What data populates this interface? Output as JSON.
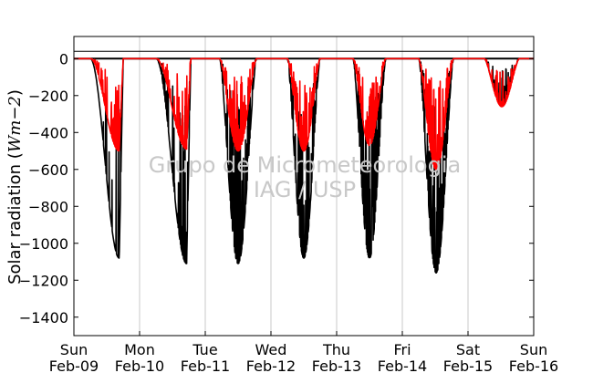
{
  "chart_data": {
    "type": "line",
    "ylabel": "Solar radiation ($Wm-2$)",
    "ylabel_text": "Solar radiation (",
    "ylabel_math": "Wm−2",
    "ylabel_close": ")",
    "ylim": [
      -1500,
      120
    ],
    "yticks": [
      0,
      -200,
      -400,
      -600,
      -800,
      -1000,
      -1200,
      -1400
    ],
    "ytick_labels": [
      "0",
      "−200",
      "−400",
      "−600",
      "−800",
      "−1000",
      "−1200",
      "−1400"
    ],
    "xlim": [
      0,
      7
    ],
    "xticks": [
      {
        "day": "Sun",
        "date": "Feb-09"
      },
      {
        "day": "Mon",
        "date": "Feb-10"
      },
      {
        "day": "Tue",
        "date": "Feb-11"
      },
      {
        "day": "Wed",
        "date": "Feb-12"
      },
      {
        "day": "Thu",
        "date": "Feb-13"
      },
      {
        "day": "Fri",
        "date": "Feb-14"
      },
      {
        "day": "Sat",
        "date": "Feb-15"
      },
      {
        "day": "Sun",
        "date": "Feb-16"
      }
    ],
    "reference_lines": [
      0,
      40
    ],
    "grid": "vertical-at-day-ticks",
    "watermark": [
      "Grupo de Micrometeorologia",
      "IAG / USP"
    ],
    "series": [
      {
        "color": "#000000",
        "days": [
          {
            "start": 0.25,
            "end": 0.75,
            "peak": -1080,
            "noise": 0.2
          },
          {
            "start": 1.25,
            "end": 1.78,
            "peak": -1110,
            "noise": 0.6
          },
          {
            "start": 2.22,
            "end": 2.78,
            "peak": -1110,
            "noise": 0.8
          },
          {
            "start": 3.25,
            "end": 3.75,
            "peak": -1080,
            "noise": 0.9
          },
          {
            "start": 4.25,
            "end": 4.75,
            "peak": -1080,
            "noise": 0.9
          },
          {
            "start": 5.25,
            "end": 5.78,
            "peak": -1160,
            "noise": 0.9
          },
          {
            "start": 6.25,
            "end": 6.78,
            "peak": -250,
            "noise": 0.5
          }
        ]
      },
      {
        "color": "#ff0000",
        "days": [
          {
            "start": 0.25,
            "end": 0.75,
            "peak": -500,
            "noise": 0.4
          },
          {
            "start": 1.25,
            "end": 1.78,
            "peak": -490,
            "noise": 0.6
          },
          {
            "start": 2.22,
            "end": 2.78,
            "peak": -500,
            "noise": 0.7
          },
          {
            "start": 3.25,
            "end": 3.75,
            "peak": -500,
            "noise": 0.8
          },
          {
            "start": 4.25,
            "end": 4.75,
            "peak": -470,
            "noise": 0.8
          },
          {
            "start": 5.25,
            "end": 5.78,
            "peak": -600,
            "noise": 0.8
          },
          {
            "start": 6.25,
            "end": 6.78,
            "peak": -260,
            "noise": 0.5
          }
        ]
      }
    ]
  }
}
